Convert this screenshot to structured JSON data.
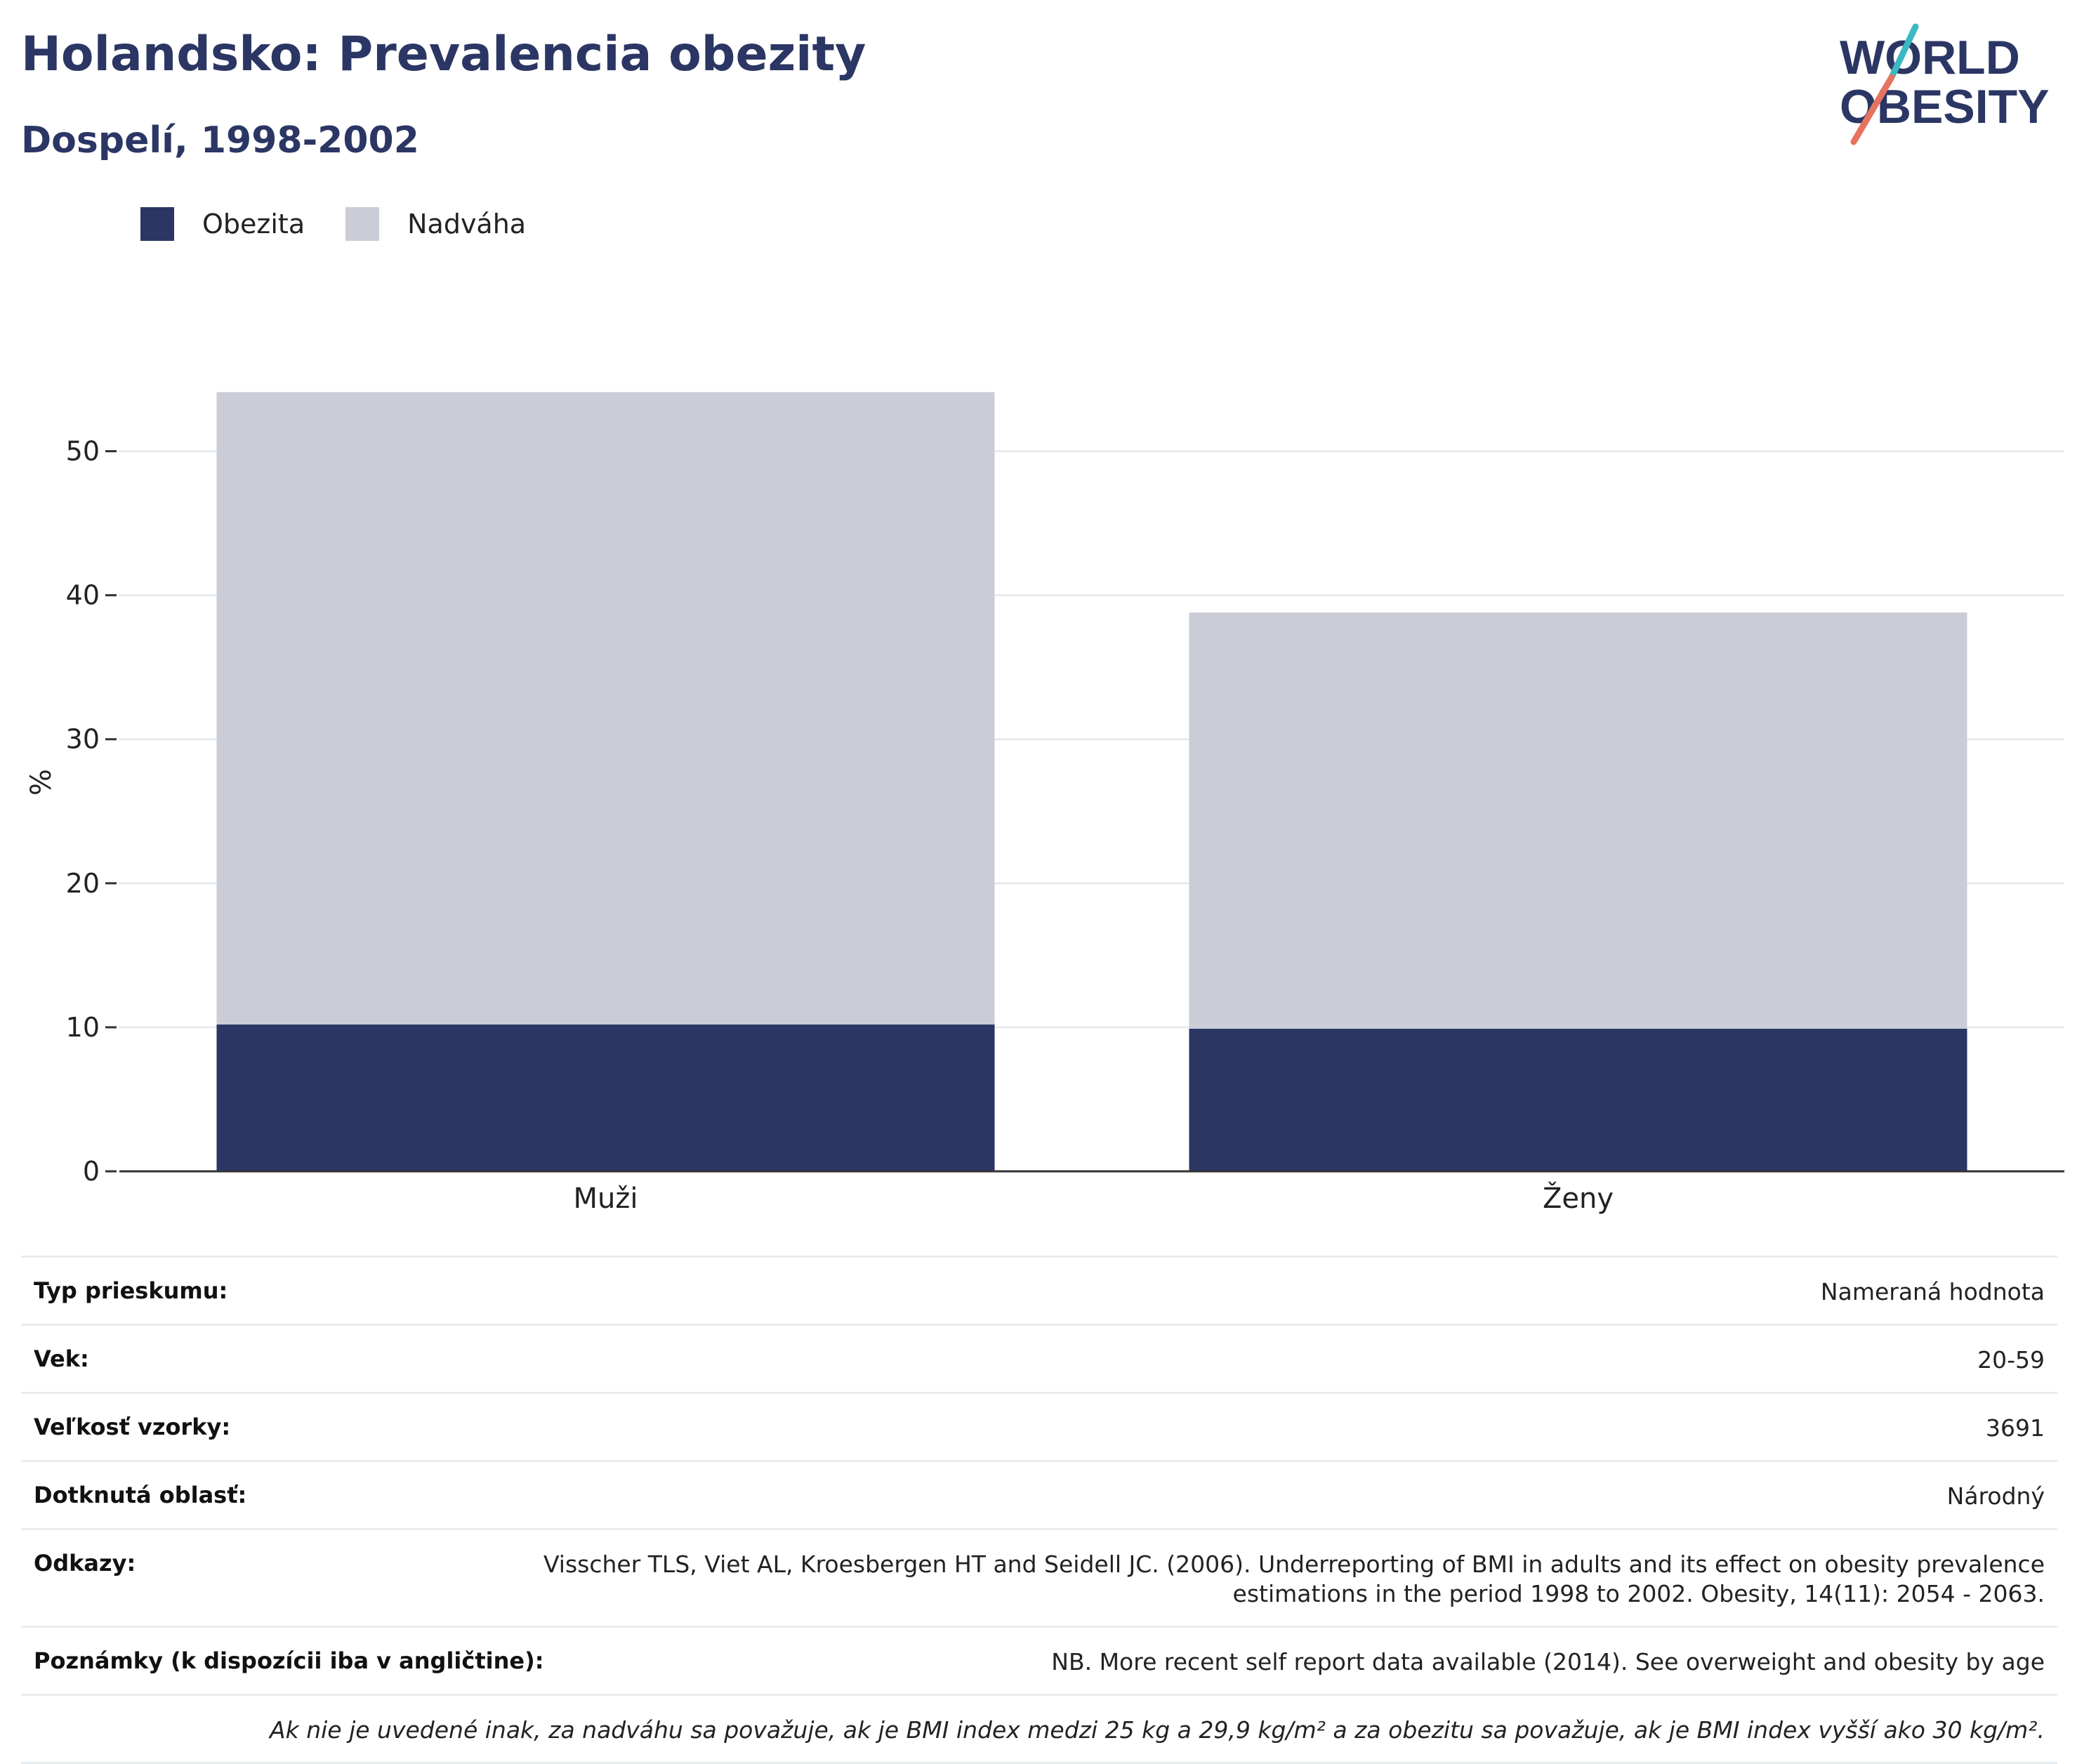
{
  "header": {
    "title": "Holandsko: Prevalencia obezity",
    "subtitle": "Dospelí, 1998-2002"
  },
  "logo": {
    "line1": "WORLD",
    "line2": "OBESITY",
    "accent_teal": "#3bb8c3",
    "accent_coral": "#e5735f",
    "color": "#2b3664"
  },
  "colors": {
    "obesity": "#2b3664",
    "overweight": "#caccd8",
    "grid": "#e9ebef",
    "axis": "#333333"
  },
  "legend": {
    "obesity_label": "Obezita",
    "overweight_label": "Nadváha"
  },
  "chart_data": {
    "type": "bar",
    "stacked": true,
    "categories": [
      "Muži",
      "Ženy"
    ],
    "series": [
      {
        "name": "Obezita",
        "values": [
          10.2,
          9.9
        ]
      },
      {
        "name": "Nadváha",
        "values": [
          43.9,
          28.9
        ]
      }
    ],
    "ylabel": "%",
    "ylim": [
      0,
      55
    ],
    "yticks": [
      0,
      10,
      20,
      30,
      40,
      50
    ],
    "grid": true,
    "legend_position": "top-left"
  },
  "table": {
    "rows": [
      {
        "key": "Typ prieskumu:",
        "value": "Nameraná hodnota"
      },
      {
        "key": "Vek:",
        "value": "20-59"
      },
      {
        "key": "Veľkosť vzorky:",
        "value": "3691"
      },
      {
        "key": "Dotknutá oblasť:",
        "value": "Národný"
      },
      {
        "key": "Odkazy:",
        "value_line1": "Visscher TLS, Viet AL, Kroesbergen HT and Seidell JC. (2006). Underreporting of BMI in adults and its effect on obesity prevalence",
        "value_line2": "estimations in the period 1998 to 2002. Obesity, 14(11): 2054 - 2063."
      },
      {
        "key": "Poznámky (k dispozícii iba v angličtine):",
        "value": "NB. More recent self report data available (2014). See overweight and obesity by age"
      }
    ],
    "footnote": "Ak nie je uvedené inak, za nadváhu sa považuje, ak je BMI index medzi 25 kg a 29,9 kg/m² a za obezitu sa považuje, ak je BMI index vyšší ako 30 kg/m²."
  }
}
